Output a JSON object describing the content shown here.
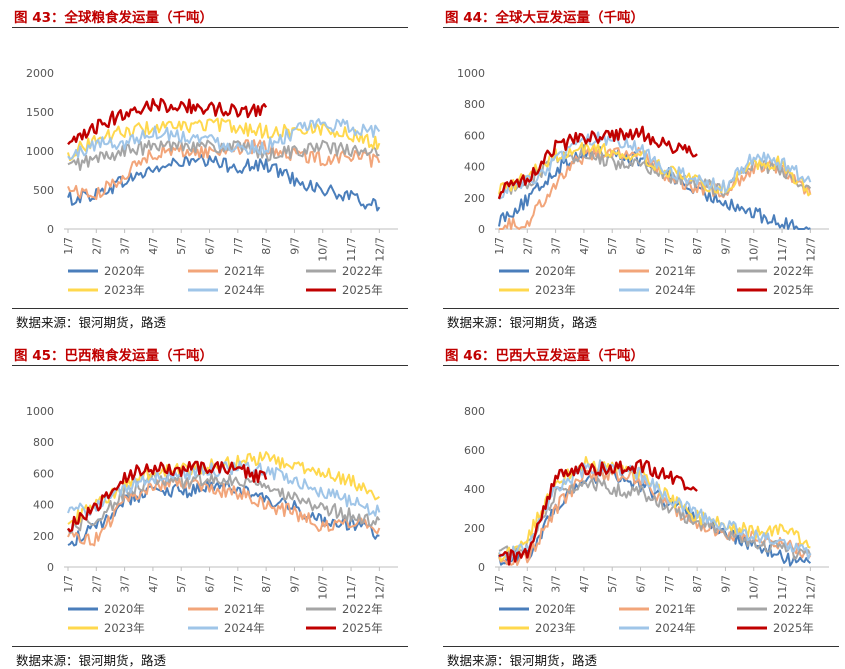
{
  "panels": [
    {
      "title": "图 43：全球粮食发运量（千吨）",
      "source": "数据来源：银河期货，路透",
      "chart_data": {
        "type": "line",
        "x_categories": [
          "1/7",
          "2/7",
          "3/7",
          "4/7",
          "5/7",
          "6/7",
          "7/7",
          "8/7",
          "9/7",
          "10/7",
          "11/7",
          "12/7"
        ],
        "y_ticks": [
          0,
          500,
          1000,
          1500,
          2000
        ],
        "ylim": [
          0,
          2000
        ],
        "grid": false,
        "legend_position": "bottom",
        "series": [
          {
            "name": "2020年",
            "color": "#4a7ebb",
            "values": [
              380,
              450,
              620,
              760,
              860,
              860,
              800,
              820,
              640,
              500,
              400,
              280
            ]
          },
          {
            "name": "2021年",
            "color": "#f2a57a",
            "values": [
              520,
              420,
              700,
              980,
              1000,
              980,
              1050,
              1050,
              950,
              900,
              950,
              850
            ]
          },
          {
            "name": "2022年",
            "color": "#a5a5a5",
            "values": [
              800,
              900,
              1000,
              1050,
              1100,
              1050,
              1050,
              950,
              1000,
              1050,
              1000,
              950
            ]
          },
          {
            "name": "2023年",
            "color": "#ffd84d",
            "values": [
              950,
              1150,
              1250,
              1300,
              1300,
              1350,
              1300,
              1250,
              1250,
              1300,
              1200,
              1100
            ]
          },
          {
            "name": "2024年",
            "color": "#9fc5e8",
            "values": [
              900,
              1100,
              1100,
              1250,
              1200,
              1150,
              1050,
              1050,
              1250,
              1350,
              1300,
              1250
            ]
          },
          {
            "name": "2025年",
            "color": "#c00000",
            "values": [
              1050,
              1300,
              1500,
              1600,
              1580,
              1550,
              1500,
              1560
            ]
          }
        ]
      }
    },
    {
      "title": "图 44：全球大豆发运量（千吨）",
      "source": "数据来源：银河期货，路透",
      "chart_data": {
        "type": "line",
        "x_categories": [
          "1/7",
          "2/7",
          "3/7",
          "4/7",
          "5/7",
          "6/7",
          "7/7",
          "8/7",
          "9/7",
          "10/7",
          "11/7",
          "12/7"
        ],
        "y_ticks": [
          0,
          200,
          400,
          600,
          800,
          1000
        ],
        "ylim": [
          0,
          1000
        ],
        "grid": false,
        "legend_position": "bottom",
        "series": [
          {
            "name": "2020年",
            "color": "#4a7ebb",
            "values": [
              60,
              180,
              380,
              500,
              480,
              440,
              360,
              230,
              180,
              100,
              30,
              5
            ]
          },
          {
            "name": "2021年",
            "color": "#f2a57a",
            "values": [
              20,
              40,
              300,
              470,
              500,
              480,
              330,
              260,
              240,
              400,
              400,
              220
            ]
          },
          {
            "name": "2022年",
            "color": "#a5a5a5",
            "values": [
              240,
              300,
              450,
              480,
              430,
              400,
              340,
              290,
              250,
              420,
              380,
              260
            ]
          },
          {
            "name": "2023年",
            "color": "#ffd84d",
            "values": [
              260,
              330,
              470,
              520,
              500,
              470,
              370,
              300,
              260,
              430,
              420,
              230
            ]
          },
          {
            "name": "2024年",
            "color": "#9fc5e8",
            "values": [
              230,
              300,
              430,
              560,
              590,
              510,
              380,
              310,
              270,
              460,
              420,
              300
            ]
          },
          {
            "name": "2025年",
            "color": "#c00000",
            "values": [
              230,
              330,
              530,
              590,
              590,
              620,
              520,
              480
            ]
          }
        ]
      }
    },
    {
      "title": "图 45：巴西粮食发运量（千吨）",
      "source": "数据来源：银河期货，路透",
      "chart_data": {
        "type": "line",
        "x_categories": [
          "1/7",
          "2/7",
          "3/7",
          "4/7",
          "5/7",
          "6/7",
          "7/7",
          "8/7",
          "9/7",
          "10/7",
          "11/7",
          "12/7"
        ],
        "y_ticks": [
          0,
          200,
          400,
          600,
          800,
          1000
        ],
        "ylim": [
          0,
          1000
        ],
        "grid": false,
        "legend_position": "bottom",
        "series": [
          {
            "name": "2020年",
            "color": "#4a7ebb",
            "values": [
              150,
              250,
              420,
              500,
              480,
              520,
              500,
              420,
              380,
              300,
              280,
              200
            ]
          },
          {
            "name": "2021年",
            "color": "#f2a57a",
            "values": [
              200,
              180,
              420,
              520,
              540,
              500,
              480,
              400,
              350,
              250,
              300,
              250
            ]
          },
          {
            "name": "2022年",
            "color": "#a5a5a5",
            "values": [
              250,
              300,
              480,
              560,
              540,
              560,
              550,
              500,
              450,
              380,
              330,
              300
            ]
          },
          {
            "name": "2023年",
            "color": "#ffd84d",
            "values": [
              280,
              400,
              520,
              600,
              620,
              650,
              680,
              700,
              650,
              600,
              550,
              450
            ]
          },
          {
            "name": "2024年",
            "color": "#9fc5e8",
            "values": [
              350,
              380,
              500,
              580,
              600,
              620,
              640,
              620,
              560,
              480,
              420,
              350
            ]
          },
          {
            "name": "2025年",
            "color": "#c00000",
            "values": [
              250,
              380,
              580,
              640,
              620,
              650,
              620,
              560
            ]
          }
        ]
      }
    },
    {
      "title": "图 46：巴西大豆发运量（千吨）",
      "source": "数据来源：银河期货，路透",
      "chart_data": {
        "type": "line",
        "x_categories": [
          "1/7",
          "2/7",
          "3/7",
          "4/7",
          "5/7",
          "6/7",
          "7/7",
          "8/7",
          "9/7",
          "10/7",
          "11/7",
          "12/7"
        ],
        "y_ticks": [
          0,
          200,
          400,
          600,
          800
        ],
        "ylim": [
          0,
          800
        ],
        "grid": false,
        "legend_position": "bottom",
        "series": [
          {
            "name": "2020年",
            "color": "#4a7ebb",
            "values": [
              40,
              60,
              300,
              460,
              470,
              420,
              330,
              260,
              180,
              110,
              50,
              20
            ]
          },
          {
            "name": "2021年",
            "color": "#f2a57a",
            "values": [
              30,
              40,
              300,
              470,
              480,
              450,
              320,
              220,
              170,
              150,
              120,
              60
            ]
          },
          {
            "name": "2022年",
            "color": "#a5a5a5",
            "values": [
              60,
              120,
              380,
              440,
              400,
              380,
              300,
              230,
              180,
              130,
              90,
              60
            ]
          },
          {
            "name": "2023年",
            "color": "#ffd84d",
            "values": [
              50,
              150,
              420,
              530,
              510,
              480,
              350,
              260,
              220,
              180,
              200,
              100
            ]
          },
          {
            "name": "2024年",
            "color": "#9fc5e8",
            "values": [
              50,
              100,
              400,
              500,
              520,
              470,
              360,
              270,
              220,
              160,
              120,
              70
            ]
          },
          {
            "name": "2025年",
            "color": "#c00000",
            "values": [
              30,
              80,
              460,
              500,
              500,
              520,
              460,
              390
            ]
          }
        ]
      }
    }
  ]
}
